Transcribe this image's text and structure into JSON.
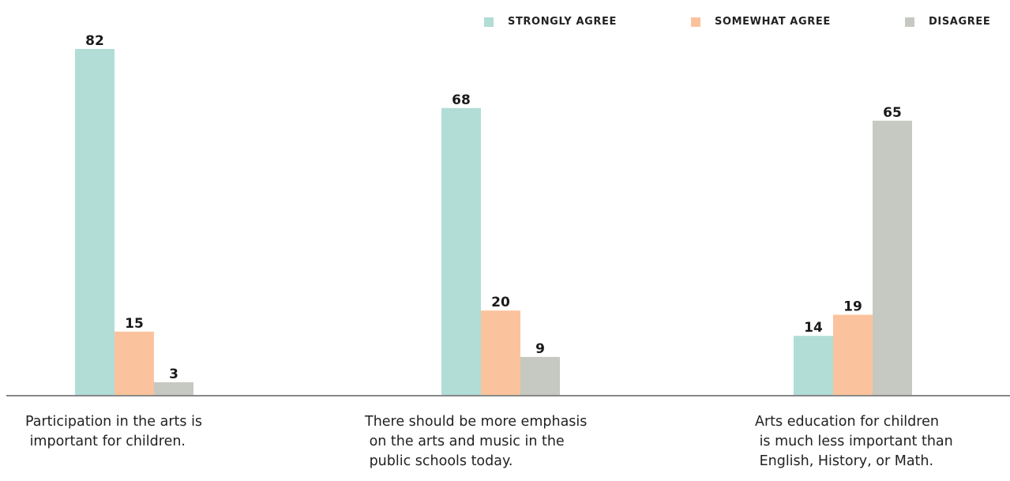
{
  "chart_data": {
    "type": "bar",
    "categories": [
      "Participation in the arts is\n important for children.",
      "There should be more emphasis\n on the arts and music in the\n public schools today.",
      "Arts education for children\n is much less important than\n English, History, or Math."
    ],
    "series": [
      {
        "name": "STRONGLY AGREE",
        "color": "#b1ddd6",
        "values": [
          82,
          68,
          14
        ]
      },
      {
        "name": "SOMEWHAT AGREE",
        "color": "#fbc39d",
        "values": [
          15,
          20,
          19
        ]
      },
      {
        "name": "DISAGREE",
        "color": "#c5c9c1",
        "values": [
          3,
          9,
          65
        ]
      }
    ],
    "ylim": [
      0,
      82
    ],
    "grid": false,
    "legend": "top-right",
    "baseline_color": "#888888"
  }
}
